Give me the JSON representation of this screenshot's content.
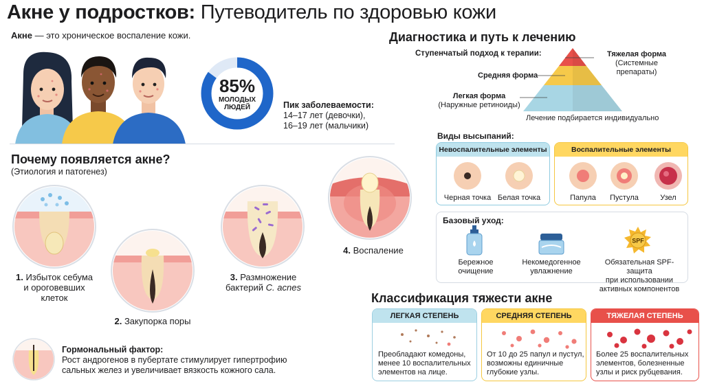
{
  "header": {
    "title_bold": "Акне у подростков:",
    "title_rest": "Путеводитель по здоровью кожи"
  },
  "intro": {
    "term": "Акне",
    "definition": " — это хроническое воспаление кожи."
  },
  "stats": {
    "percent": "85%",
    "percent_value": 0.85,
    "percent_caption_line1": "МОЛОДЫХ",
    "percent_caption_line2": "ЛЮДЕЙ",
    "peak_title": "Пик заболеваемости:",
    "peak_girls": "14–17 лет (девочки),",
    "peak_boys": "16–19 лет (мальчики)"
  },
  "why": {
    "title": "Почему появляется акне?",
    "subtitle": "(Этиология и патогенез)",
    "steps": [
      {
        "num": "1.",
        "line1": "Избыток себума",
        "line2": "и ороговевших",
        "line3": "клеток"
      },
      {
        "num": "2.",
        "line1": "Закупорка поры"
      },
      {
        "num": "3.",
        "line1": "Размножение",
        "line2": "бактерий",
        "italic": "C. acnes"
      },
      {
        "num": "4.",
        "line1": "Воспаление"
      }
    ]
  },
  "hormonal": {
    "title": "Гормональный фактор:",
    "line1": "Рост андрогенов в пубертате стимулирует гипертрофию",
    "line2": "сальных желез и увеличивает вязкость кожного сала."
  },
  "diagnosis": {
    "title": "Диагностика и путь к лечению",
    "step_approach": "Ступенчатый подход к терапии:",
    "severe": "Тяжелая форма",
    "severe_note": "(Системные препараты)",
    "medium": "Средняя форма",
    "mild": "Легкая форма",
    "mild_note": "(Наружные ретиноиды)",
    "individual": "Лечение подбирается индивидуально"
  },
  "rash": {
    "title": "Виды высыпаний:",
    "noninflammatory_title": "Невоспалительные элементы",
    "inflammatory_title": "Воспалительные элементы",
    "items": [
      {
        "label": "Черная точка"
      },
      {
        "label": "Белая точка"
      },
      {
        "label": "Папула"
      },
      {
        "label": "Пустула"
      },
      {
        "label": "Узел"
      }
    ]
  },
  "care": {
    "title": "Базовый уход:",
    "items": [
      {
        "line1": "Бережное",
        "line2": "очищение"
      },
      {
        "line1": "Некомедогенное",
        "line2": "увлажнение"
      },
      {
        "line1": "Обязательная SPF-защита",
        "line2": "при использовании",
        "line3": "активных компонентов"
      }
    ],
    "spf_badge": "SPF"
  },
  "severity": {
    "title": "Классификация тяжести акне",
    "levels": [
      {
        "title": "ЛЕГКАЯ СТЕПЕНЬ",
        "line1": "Преобладают комедоны,",
        "line2": "менее 10 воспалительных",
        "line3": "элементов на лице."
      },
      {
        "title": "СРЕДНЯЯ СТЕПЕНЬ",
        "line1": "От 10 до 25 папул и пустул,",
        "line2": "возможны единичные",
        "line3": "глубокие узлы."
      },
      {
        "title": "ТЯЖЕЛАЯ СТЕПЕНЬ",
        "line1": "Более 25 воспалительных",
        "line2": "элементов, болезненные",
        "line3": "узлы и риск рубцевания."
      }
    ]
  },
  "colors": {
    "blue": "#1f66c9",
    "teal_header": "#bfe3ee",
    "yellow_header": "#ffd761",
    "red_header": "#e8504a"
  }
}
